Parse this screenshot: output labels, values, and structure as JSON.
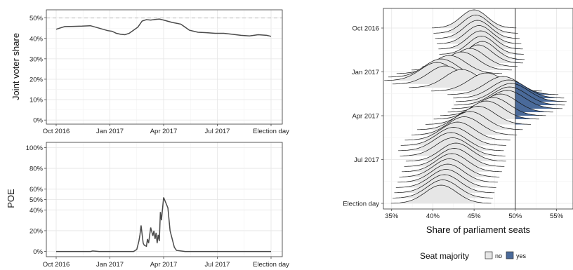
{
  "chart_data": [
    {
      "type": "line",
      "id": "voter-share",
      "ylabel": "Joint voter share",
      "xlabel": "",
      "x_ticks": [
        "Oct 2016",
        "Jan 2017",
        "Apr 2017",
        "Jul 2017",
        "Election day"
      ],
      "y_ticks": [
        "0%",
        "10%",
        "20%",
        "30%",
        "40%",
        "50%"
      ],
      "ylim": [
        0,
        52
      ],
      "reference_line": 50,
      "grid": true,
      "x": [
        0,
        0.04,
        0.08,
        0.12,
        0.16,
        0.2,
        0.24,
        0.26,
        0.28,
        0.3,
        0.32,
        0.34,
        0.38,
        0.4,
        0.42,
        0.44,
        0.46,
        0.48,
        0.5,
        0.54,
        0.58,
        0.6,
        0.62,
        0.66,
        0.7,
        0.74,
        0.78,
        0.82,
        0.86,
        0.9,
        0.94,
        0.98,
        1.0
      ],
      "values": [
        44.5,
        45.8,
        45.9,
        46.0,
        46.2,
        45.0,
        43.8,
        43.5,
        42.5,
        42.0,
        41.8,
        42.5,
        45.5,
        48.5,
        49.2,
        49.0,
        49.3,
        49.5,
        49.0,
        47.8,
        47.0,
        45.5,
        44.0,
        43.0,
        42.8,
        42.5,
        42.5,
        42.0,
        41.5,
        41.2,
        41.8,
        41.5,
        41.0
      ]
    },
    {
      "type": "line",
      "id": "poe",
      "ylabel": "POE",
      "xlabel": "",
      "x_ticks": [
        "Oct 2016",
        "Jan 2017",
        "Apr 2017",
        "Jul 2017",
        "Election day"
      ],
      "y_ticks": [
        "0%",
        "20%",
        "40%",
        "50%",
        "60%",
        "80%",
        "100%"
      ],
      "y_tick_values": [
        0,
        0.2,
        0.4,
        0.5,
        0.6,
        0.8,
        1.0
      ],
      "ylim": [
        0,
        1
      ],
      "grid": true,
      "x": [
        0,
        0.1,
        0.16,
        0.17,
        0.2,
        0.3,
        0.36,
        0.375,
        0.385,
        0.39,
        0.395,
        0.405,
        0.41,
        0.42,
        0.425,
        0.43,
        0.44,
        0.45,
        0.455,
        0.46,
        0.465,
        0.47,
        0.475,
        0.48,
        0.485,
        0.49,
        0.5,
        0.52,
        0.53,
        0.55,
        0.56,
        0.6,
        0.8,
        1.0
      ],
      "values": [
        0.0,
        0.0,
        0.0,
        0.005,
        0.0,
        0.0,
        0.0,
        0.02,
        0.1,
        0.16,
        0.25,
        0.08,
        0.06,
        0.05,
        0.12,
        0.08,
        0.23,
        0.15,
        0.2,
        0.12,
        0.18,
        0.08,
        0.16,
        0.1,
        0.38,
        0.3,
        0.52,
        0.42,
        0.2,
        0.04,
        0.01,
        0.0,
        0.0,
        0.0
      ]
    },
    {
      "type": "ridgeline",
      "id": "parliament-seats",
      "xlabel": "Share of parliament seats",
      "x_ticks": [
        "35%",
        "40%",
        "45%",
        "50%",
        "55%"
      ],
      "x_tick_values": [
        35,
        40,
        45,
        50,
        55
      ],
      "xlim": [
        34,
        57
      ],
      "reference_line": 50,
      "y_ticks": [
        "Oct 2016",
        "Jan 2017",
        "Apr 2017",
        "Jul 2017",
        "Election day"
      ],
      "legend": {
        "title": "Seat majority",
        "items": [
          {
            "label": "no",
            "color": "#e6e6e6"
          },
          {
            "label": "yes",
            "color": "#4a6a9a"
          }
        ],
        "position": "bottom"
      },
      "time_fraction": [
        0,
        0.03,
        0.06,
        0.09,
        0.12,
        0.15,
        0.18,
        0.2,
        0.22,
        0.24,
        0.26,
        0.28,
        0.3,
        0.32,
        0.34,
        0.36,
        0.38,
        0.4,
        0.42,
        0.44,
        0.46,
        0.48,
        0.5,
        0.52,
        0.55,
        0.58,
        0.61,
        0.64,
        0.67,
        0.7,
        0.73,
        0.76,
        0.79,
        0.82,
        0.85,
        0.88,
        0.91,
        0.94,
        0.97,
        1.0
      ],
      "centers": [
        45.0,
        45.2,
        45.4,
        45.6,
        45.8,
        45.9,
        46.0,
        45.5,
        44.5,
        43.5,
        42.0,
        41.0,
        40.5,
        41.5,
        43.5,
        46.5,
        48.5,
        49.2,
        49.5,
        49.3,
        49.0,
        48.2,
        47.3,
        46.5,
        45.5,
        44.5,
        43.8,
        43.0,
        42.5,
        42.2,
        42.4,
        42.8,
        42.6,
        42.3,
        42.0,
        41.8,
        41.6,
        41.4,
        41.2,
        41.0
      ],
      "spreads": [
        1.6,
        1.6,
        1.6,
        1.6,
        1.6,
        1.6,
        1.6,
        1.7,
        1.8,
        1.9,
        2.0,
        2.0,
        2.0,
        2.0,
        2.0,
        2.1,
        2.1,
        2.1,
        2.1,
        2.1,
        2.1,
        2.0,
        2.0,
        2.0,
        2.0,
        2.0,
        2.0,
        2.0,
        2.0,
        2.0,
        2.0,
        1.9,
        1.9,
        1.9,
        1.9,
        1.9,
        1.9,
        1.9,
        1.9,
        1.9
      ]
    }
  ],
  "colors": {
    "line": "#4a4a4a",
    "panel_border": "#333333",
    "grid_major": "#e5e5e5",
    "grid_minor": "#f2f2f2",
    "reference": "#bbbbbb",
    "fill_no": "#e6e6e6",
    "fill_yes": "#4a6a9a"
  }
}
